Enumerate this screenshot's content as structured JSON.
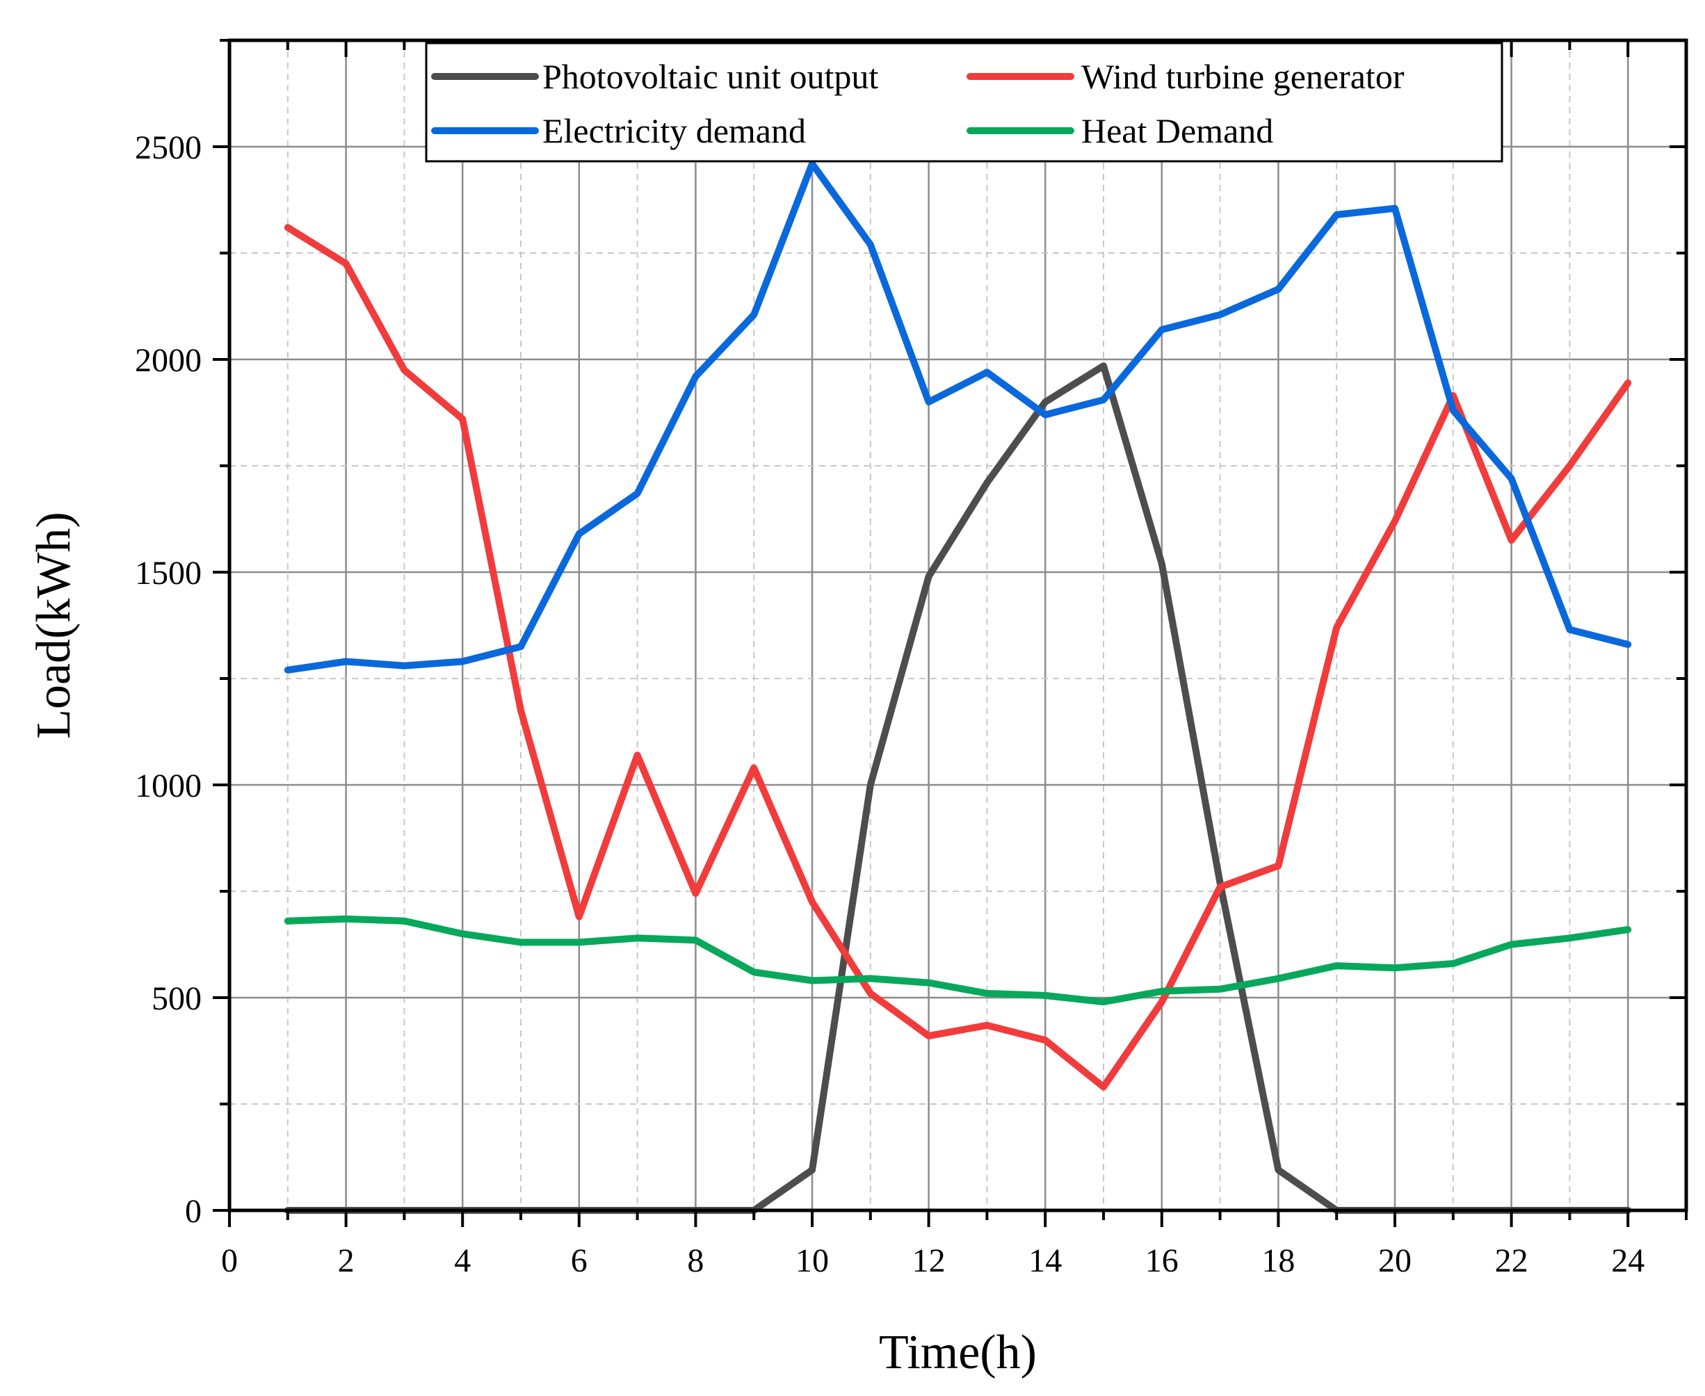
{
  "chart_data": {
    "type": "line",
    "xlabel": "Time(h)",
    "ylabel": "Load(kWh)",
    "xlim": [
      0,
      25
    ],
    "ylim": [
      0,
      2750
    ],
    "x_ticks": [
      0,
      2,
      4,
      6,
      8,
      10,
      12,
      14,
      16,
      18,
      20,
      22,
      24
    ],
    "y_ticks": [
      0,
      500,
      1000,
      1500,
      2000,
      2500
    ],
    "grid": true,
    "legend_position": "top",
    "x": [
      1,
      2,
      3,
      4,
      5,
      6,
      7,
      8,
      9,
      10,
      11,
      12,
      13,
      14,
      15,
      16,
      17,
      18,
      19,
      20,
      21,
      22,
      23,
      24
    ],
    "series": [
      {
        "name": "Photovoltaic unit output",
        "color": "#4d4d4d",
        "values": [
          0,
          0,
          0,
          0,
          0,
          0,
          0,
          0,
          0,
          95,
          1000,
          1490,
          1710,
          1900,
          1985,
          1520,
          770,
          95,
          0,
          0,
          0,
          0,
          0,
          0
        ]
      },
      {
        "name": "Wind turbine generator",
        "color": "#f23b3b",
        "values": [
          2310,
          2225,
          1975,
          1860,
          1175,
          690,
          1070,
          745,
          1040,
          725,
          510,
          410,
          435,
          400,
          290,
          490,
          760,
          810,
          1370,
          1620,
          1915,
          1575,
          1750,
          1945
        ]
      },
      {
        "name": "Electricity demand",
        "color": "#0a68dd",
        "values": [
          1270,
          1290,
          1280,
          1290,
          1325,
          1590,
          1685,
          1960,
          2105,
          2460,
          2270,
          1900,
          1970,
          1870,
          1905,
          2070,
          2105,
          2165,
          2340,
          2355,
          1880,
          1720,
          1365,
          1330
        ]
      },
      {
        "name": "Heat Demand",
        "color": "#08a85c",
        "values": [
          680,
          685,
          680,
          650,
          630,
          630,
          640,
          635,
          560,
          540,
          545,
          535,
          510,
          505,
          490,
          515,
          520,
          545,
          575,
          570,
          580,
          625,
          640,
          660
        ]
      }
    ]
  }
}
